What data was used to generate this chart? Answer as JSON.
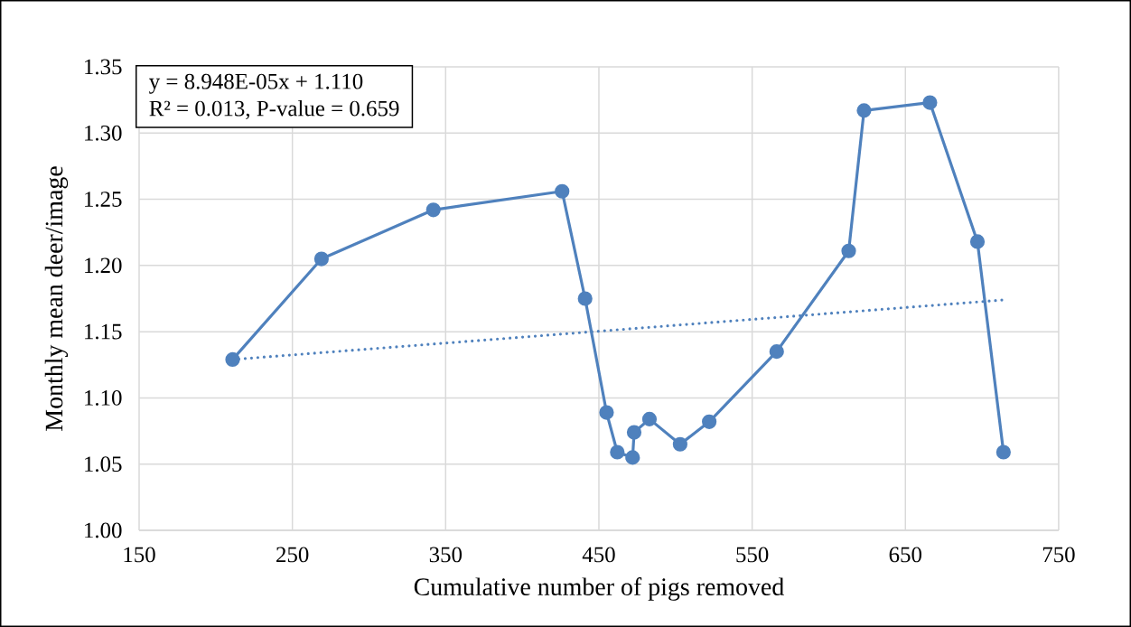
{
  "chart_data": {
    "type": "line",
    "xlabel": "Cumulative number of pigs removed",
    "ylabel": "Monthly mean deer/image",
    "annotations": [
      "y = 8.948E-05x + 1.110",
      "R² = 0.013, P-value = 0.659"
    ],
    "series": [
      {
        "x": [
          211,
          269,
          342,
          426,
          441,
          455,
          462,
          472,
          473,
          483,
          503,
          522,
          566,
          613,
          623,
          666,
          697,
          714
        ],
        "values": [
          1.129,
          1.205,
          1.242,
          1.256,
          1.175,
          1.089,
          1.059,
          1.055,
          1.074,
          1.084,
          1.065,
          1.082,
          1.135,
          1.211,
          1.317,
          1.323,
          1.218,
          1.059
        ],
        "color": "#4f81bd",
        "marker": "circle",
        "line_style": "solid"
      },
      {
        "type": "line",
        "x": [
          211,
          714
        ],
        "values": [
          1.129,
          1.174
        ],
        "color": "#4f81bd",
        "marker": "none",
        "line_style": "dotted"
      }
    ],
    "xlim": [
      150,
      750
    ],
    "xticks": [
      150,
      250,
      350,
      450,
      550,
      650,
      750
    ],
    "ylim": [
      1.0,
      1.35
    ],
    "yticks": [
      {
        "value": 1.0,
        "label": "1.00"
      },
      {
        "value": 1.05,
        "label": "1.05"
      },
      {
        "value": 1.1,
        "label": "1.10"
      },
      {
        "value": 1.15,
        "label": "1.15"
      },
      {
        "value": 1.2,
        "label": "1.20"
      },
      {
        "value": 1.25,
        "label": "1.25"
      },
      {
        "value": 1.3,
        "label": "1.30"
      },
      {
        "value": 1.35,
        "label": "1.35"
      }
    ],
    "grid": true
  }
}
